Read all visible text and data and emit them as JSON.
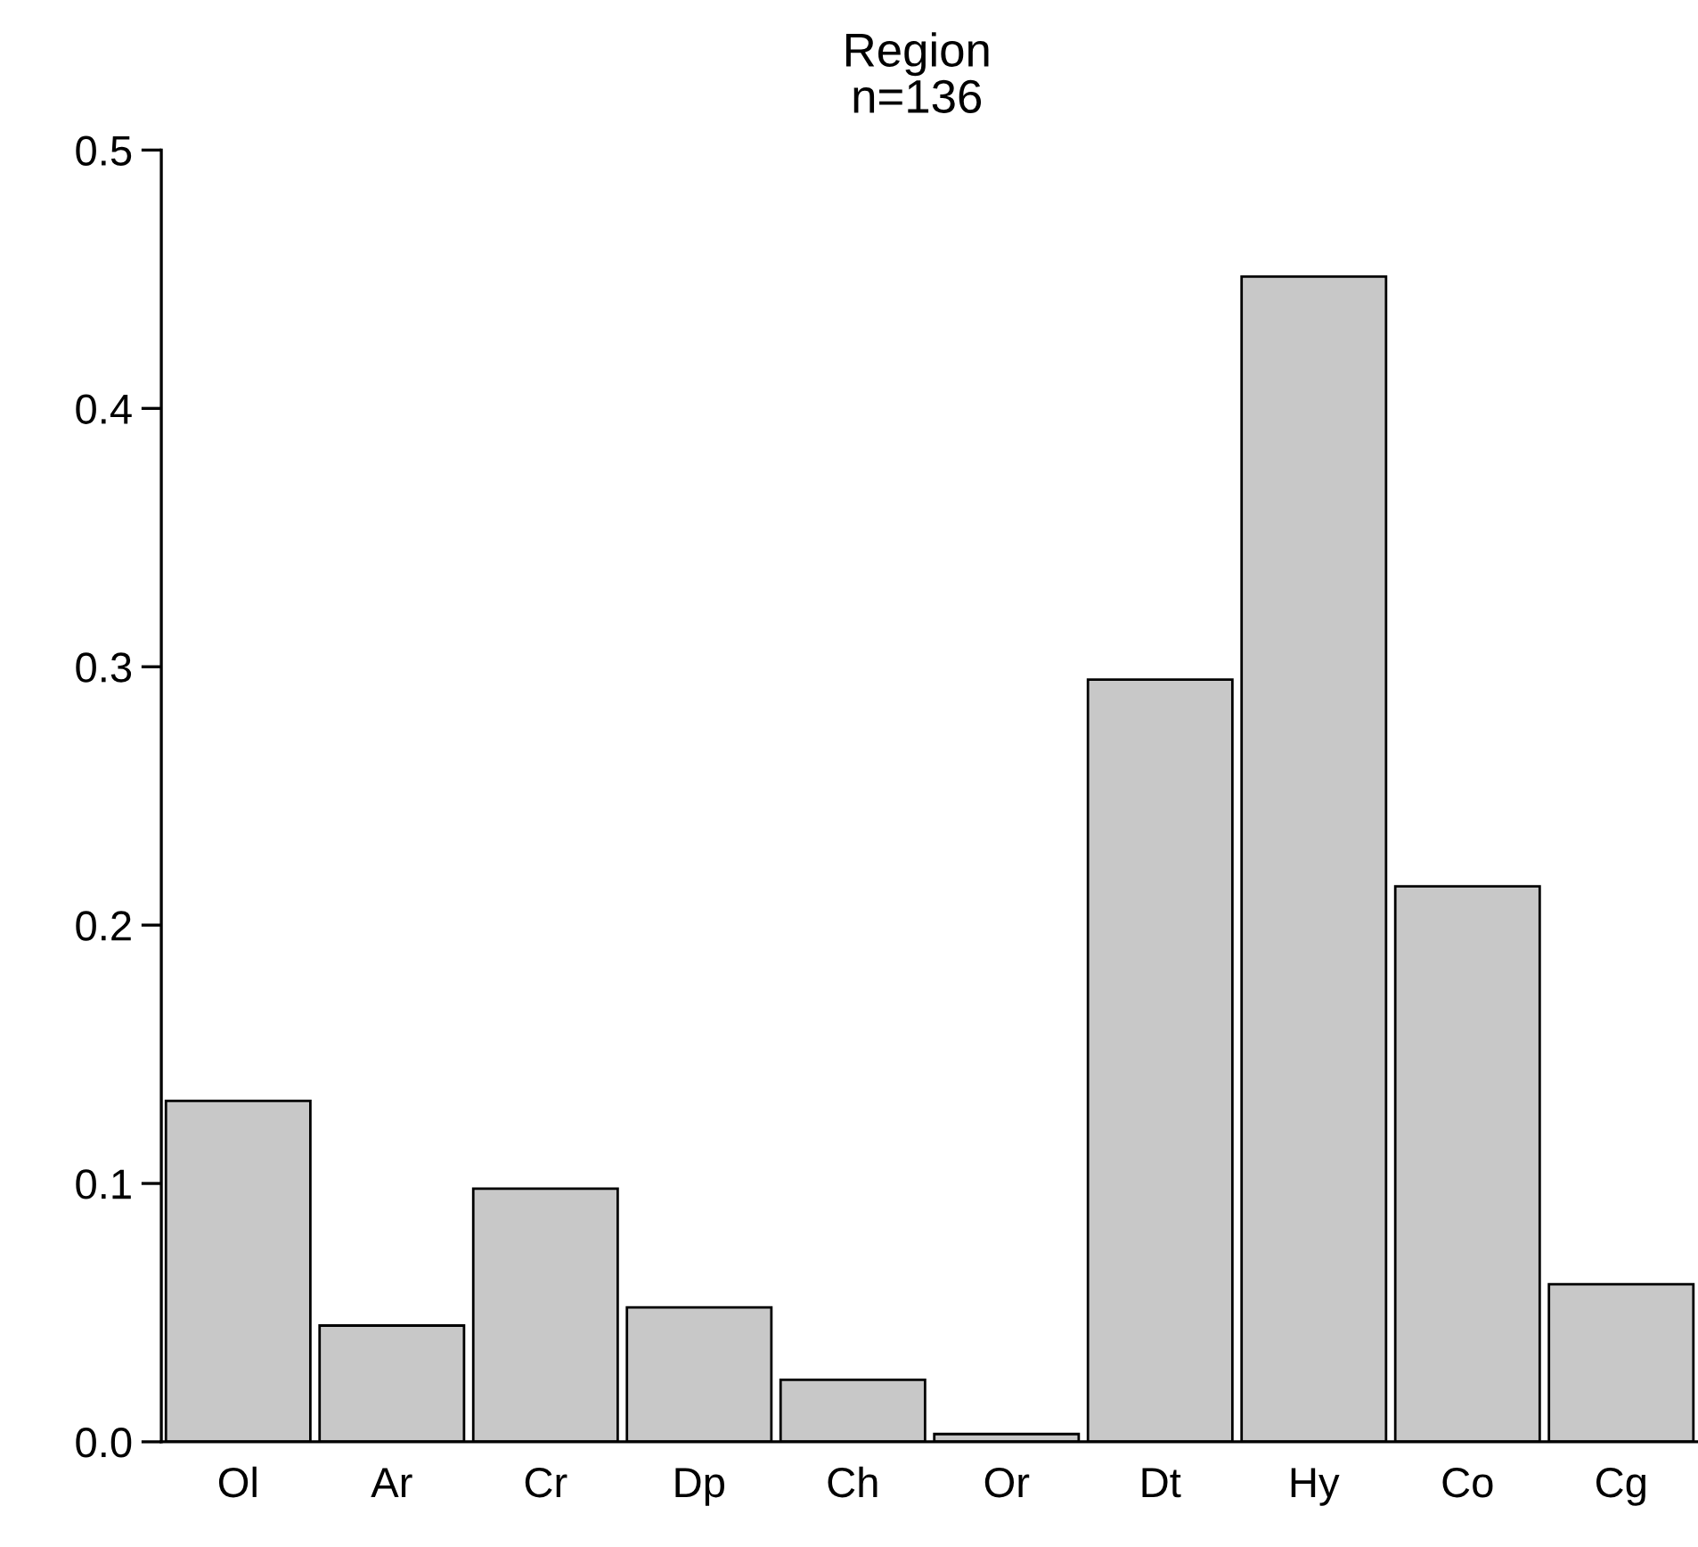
{
  "chart_data": {
    "type": "bar",
    "title": "Region",
    "subtitle": "n=136",
    "categories": [
      "Ol",
      "Ar",
      "Cr",
      "Dp",
      "Ch",
      "Or",
      "Dt",
      "Hy",
      "Co",
      "Cg"
    ],
    "values": [
      0.132,
      0.045,
      0.098,
      0.052,
      0.024,
      0.003,
      0.295,
      0.451,
      0.215,
      0.061
    ],
    "color": "#c8c8c8",
    "ylim": [
      0,
      0.5
    ],
    "yticks": [
      {
        "value": 0,
        "label": "0.0"
      },
      0.1,
      0.2,
      0.3,
      0.4,
      0.5
    ],
    "grid": false
  }
}
